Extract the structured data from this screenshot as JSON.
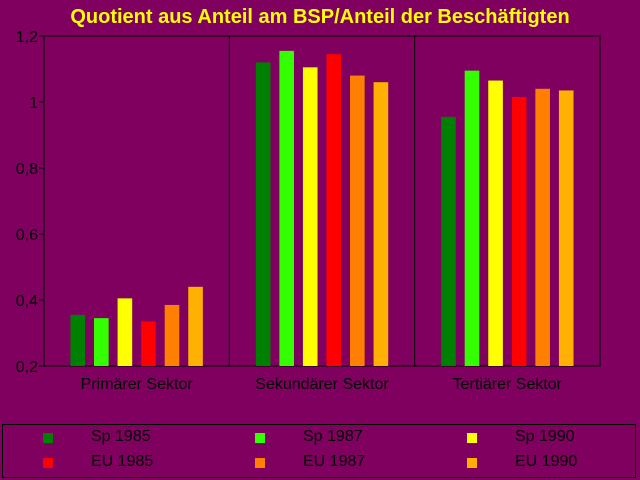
{
  "colors": {
    "background": "#800060",
    "title": "#FFFF00",
    "text": "#000000"
  },
  "chart_data": {
    "type": "bar",
    "title": "Quotient aus Anteil am BSP/Anteil der Beschäftigten",
    "xlabel": "",
    "ylabel": "",
    "ylim": [
      0.2,
      1.2
    ],
    "yticks": [
      "0,2",
      "0,4",
      "0,6",
      "0,8",
      "1",
      "1,2"
    ],
    "ytick_values": [
      0.2,
      0.4,
      0.6,
      0.8,
      1.0,
      1.2
    ],
    "grid": false,
    "legend_position": "bottom",
    "categories": [
      "Primärer Sektor",
      "Sekundärer Sektor",
      "Tertiärer Sektor"
    ],
    "series": [
      {
        "name": "Sp 1985",
        "color": "#008000",
        "values": [
          0.355,
          1.12,
          0.955
        ]
      },
      {
        "name": "Sp 1987",
        "color": "#33FF00",
        "values": [
          0.345,
          1.155,
          1.095
        ]
      },
      {
        "name": "Sp 1990",
        "color": "#FFFF00",
        "values": [
          0.405,
          1.105,
          1.065
        ]
      },
      {
        "name": "EU 1985",
        "color": "#FF0000",
        "values": [
          0.335,
          1.145,
          1.015
        ]
      },
      {
        "name": "EU 1987",
        "color": "#FF8000",
        "values": [
          0.385,
          1.08,
          1.04
        ]
      },
      {
        "name": "EU 1990",
        "color": "#FFB000",
        "values": [
          0.44,
          1.06,
          1.035
        ]
      }
    ]
  }
}
